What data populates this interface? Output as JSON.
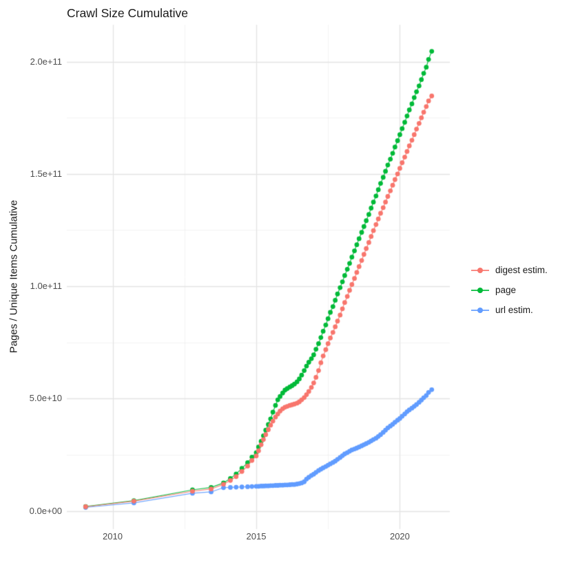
{
  "chart": {
    "title": "Crawl Size Cumulative",
    "ylabel": "Pages / Unique Items Cumulative",
    "xlabel": ""
  },
  "colors": {
    "digest": "#F8766D",
    "page": "#00BA38",
    "url": "#619CFF",
    "grid_major": "#e3e3e3",
    "grid_minor": "#f2f2f2",
    "tick_text": "#4d4d4d",
    "title_text": "#1a1a1a",
    "background": "#ffffff"
  },
  "chart_data": {
    "type": "scatter",
    "title": "Crawl Size Cumulative",
    "xlabel": "",
    "ylabel": "Pages / Unique Items Cumulative",
    "grid": true,
    "legend_position": "right",
    "xlim": [
      2008.405,
      2021.74
    ],
    "ylim_1e9": [
      -8.05,
      216.4
    ],
    "xticks": [
      {
        "value": 2010,
        "label": "2010"
      },
      {
        "value": 2015,
        "label": "2015"
      },
      {
        "value": 2020,
        "label": "2020"
      }
    ],
    "yticks": [
      {
        "value_1e9": 0,
        "label": "0.0e+00"
      },
      {
        "value_1e9": 50,
        "label": "5.0e+10"
      },
      {
        "value_1e9": 100,
        "label": "1.0e+11"
      },
      {
        "value_1e9": 150,
        "label": "1.5e+11"
      },
      {
        "value_1e9": 200,
        "label": "2.0e+11"
      }
    ],
    "x_minor": [
      2012.5,
      2017.5
    ],
    "y_minor_1e9": [
      25,
      75,
      125,
      175
    ],
    "x": [
      2009.06,
      2010.74,
      2012.78,
      2013.43,
      2013.86,
      2014.1,
      2014.3,
      2014.5,
      2014.7,
      2014.85,
      2015.0,
      2015.08,
      2015.17,
      2015.25,
      2015.33,
      2015.42,
      2015.5,
      2015.58,
      2015.67,
      2015.75,
      2015.83,
      2015.92,
      2016.0,
      2016.08,
      2016.17,
      2016.25,
      2016.33,
      2016.42,
      2016.5,
      2016.58,
      2016.67,
      2016.75,
      2016.83,
      2016.92,
      2017.0,
      2017.08,
      2017.17,
      2017.25,
      2017.33,
      2017.42,
      2017.5,
      2017.58,
      2017.67,
      2017.75,
      2017.83,
      2017.92,
      2018.0,
      2018.08,
      2018.17,
      2018.25,
      2018.33,
      2018.42,
      2018.5,
      2018.58,
      2018.67,
      2018.75,
      2018.83,
      2018.92,
      2019.0,
      2019.08,
      2019.17,
      2019.25,
      2019.33,
      2019.42,
      2019.5,
      2019.58,
      2019.67,
      2019.75,
      2019.83,
      2019.92,
      2020.0,
      2020.08,
      2020.17,
      2020.25,
      2020.33,
      2020.42,
      2020.5,
      2020.58,
      2020.67,
      2020.75,
      2020.83,
      2020.92,
      2021.0,
      2021.11
    ],
    "series": [
      {
        "name": "digest estim.",
        "color": "#F8766D",
        "z": 3,
        "values_1e9": [
          1.9,
          4.4,
          8.8,
          9.8,
          11.9,
          13.6,
          15.3,
          17.6,
          20.0,
          22.5,
          24.5,
          26.8,
          29.5,
          31.8,
          34.0,
          36.2,
          38.2,
          40.0,
          41.8,
          43.2,
          44.5,
          45.5,
          46.2,
          46.6,
          47.0,
          47.3,
          47.6,
          48.0,
          48.6,
          49.5,
          50.5,
          51.8,
          53.2,
          55.0,
          57.0,
          59.5,
          62.5,
          66.0,
          69.0,
          71.8,
          74.5,
          77.0,
          79.5,
          82.0,
          84.5,
          87.2,
          90.0,
          92.8,
          95.5,
          98.2,
          100.8,
          103.5,
          106.2,
          108.8,
          111.5,
          114.2,
          116.8,
          119.5,
          122.2,
          124.8,
          127.5,
          130.0,
          132.5,
          135.0,
          137.5,
          140.0,
          142.5,
          145.0,
          147.5,
          150.0,
          152.5,
          155.0,
          157.5,
          160.0,
          162.5,
          165.0,
          167.5,
          170.0,
          172.5,
          175.0,
          177.5,
          180.0,
          182.5,
          184.7
        ]
      },
      {
        "name": "page",
        "color": "#00BA38",
        "z": 2,
        "values_1e9": [
          2.0,
          4.6,
          9.4,
          10.5,
          12.5,
          14.5,
          16.5,
          19.0,
          21.5,
          24.0,
          26.0,
          28.5,
          31.0,
          33.5,
          36.0,
          38.5,
          41.0,
          44.0,
          47.0,
          49.5,
          51.0,
          52.5,
          53.8,
          54.5,
          55.2,
          55.8,
          56.5,
          57.5,
          58.8,
          60.5,
          62.5,
          64.5,
          66.2,
          67.8,
          69.5,
          72.0,
          74.5,
          77.2,
          80.0,
          82.8,
          85.6,
          88.4,
          91.0,
          93.8,
          96.6,
          99.4,
          102.0,
          104.8,
          107.6,
          110.2,
          113.0,
          115.8,
          118.5,
          121.2,
          124.0,
          126.6,
          129.2,
          132.0,
          134.8,
          137.5,
          140.2,
          143.0,
          145.8,
          148.5,
          151.2,
          154.0,
          156.6,
          159.2,
          162.0,
          164.8,
          167.5,
          170.2,
          173.0,
          175.8,
          178.5,
          181.2,
          184.0,
          186.6,
          189.2,
          192.0,
          194.8,
          197.5,
          201.0,
          204.6
        ]
      },
      {
        "name": "url estim.",
        "color": "#619CFF",
        "z": 1,
        "values_1e9": [
          1.6,
          3.6,
          7.9,
          8.5,
          10.4,
          10.5,
          10.6,
          10.7,
          10.8,
          10.9,
          11.0,
          11.0,
          11.1,
          11.1,
          11.2,
          11.2,
          11.3,
          11.3,
          11.4,
          11.4,
          11.5,
          11.5,
          11.6,
          11.6,
          11.7,
          11.8,
          11.8,
          12.0,
          12.2,
          12.5,
          13.0,
          14.2,
          15.0,
          15.8,
          16.4,
          17.2,
          18.0,
          18.6,
          19.2,
          19.8,
          20.4,
          21.0,
          21.6,
          22.2,
          23.0,
          23.8,
          24.6,
          25.4,
          26.0,
          26.6,
          27.2,
          27.6,
          28.0,
          28.5,
          29.0,
          29.5,
          30.0,
          30.6,
          31.2,
          31.8,
          32.4,
          33.2,
          34.0,
          35.0,
          36.0,
          37.0,
          37.8,
          38.6,
          39.5,
          40.4,
          41.2,
          42.2,
          43.2,
          44.2,
          45.0,
          45.8,
          46.6,
          47.4,
          48.4,
          49.4,
          50.4,
          51.4,
          52.8,
          54.0
        ]
      }
    ]
  }
}
